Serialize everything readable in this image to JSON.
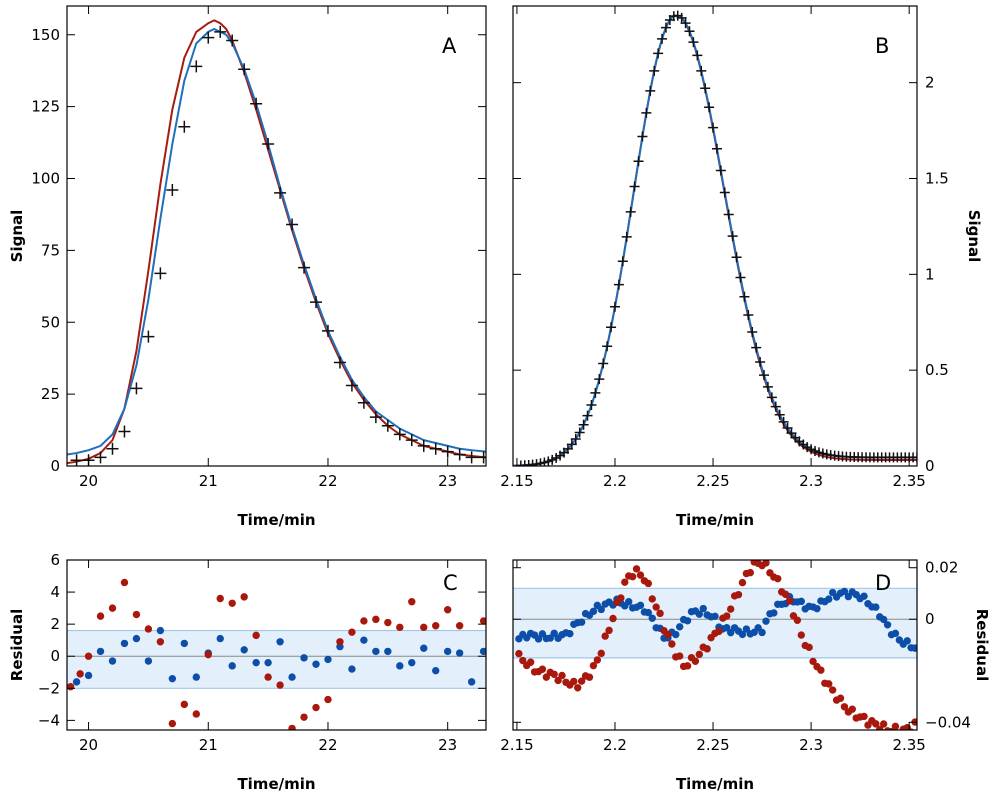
{
  "colors": {
    "data": "#111111",
    "fit_blue": "#1f6fbd",
    "fit_red": "#a61c10",
    "resid_blue": "#0d4fa8",
    "resid_red": "#a8180c",
    "band_fill": "#e3f0fb",
    "band_edge": "#9fc7ea",
    "zero_line": "#8a8a8a"
  },
  "chart_data": [
    {
      "panel": "A",
      "type": "line",
      "xlabel": "Time/min",
      "ylabel": "Signal",
      "xlim": [
        19.82,
        23.32
      ],
      "ylim": [
        0,
        160
      ],
      "xticks": [
        20,
        21,
        22,
        23
      ],
      "xtick_labels": [
        "20",
        "21",
        "22",
        "23"
      ],
      "yticks": [
        0,
        25,
        50,
        75,
        100,
        125,
        150
      ],
      "ytick_labels": [
        "0",
        "25",
        "50",
        "75",
        "100",
        "125",
        "150"
      ],
      "y_axis_side": "left",
      "data_points": {
        "x": [
          19.9,
          20.0,
          20.1,
          20.2,
          20.3,
          20.4,
          20.5,
          20.6,
          20.7,
          20.8,
          20.9,
          21.0,
          21.1,
          21.2,
          21.3,
          21.4,
          21.5,
          21.6,
          21.7,
          21.8,
          21.9,
          22.0,
          22.1,
          22.2,
          22.3,
          22.4,
          22.5,
          22.6,
          22.7,
          22.8,
          22.9,
          23.0,
          23.1,
          23.2,
          23.3
        ],
        "y": [
          2,
          2,
          3,
          6,
          12,
          27,
          45,
          67,
          96,
          118,
          139,
          149,
          151,
          148,
          138,
          126,
          112,
          95,
          84,
          69,
          57,
          47,
          36,
          28,
          22,
          17,
          14,
          11,
          9,
          7,
          6,
          5,
          4,
          3,
          3
        ]
      },
      "series": [
        {
          "x": [
            19.82,
            19.9,
            20.0,
            20.1,
            20.2,
            20.3,
            20.4,
            20.5,
            20.6,
            20.7,
            20.8,
            20.9,
            21.0,
            21.05,
            21.1,
            21.15,
            21.2,
            21.3,
            21.4,
            21.5,
            21.6,
            21.7,
            21.8,
            21.9,
            22.0,
            22.1,
            22.2,
            22.3,
            22.4,
            22.5,
            22.6,
            22.7,
            22.8,
            22.9,
            23.0,
            23.1,
            23.2,
            23.32
          ],
          "y": [
            1,
            1.5,
            2.5,
            4.5,
            9,
            20,
            40,
            68,
            98,
            124,
            142,
            151,
            154,
            155,
            154,
            152,
            148,
            137,
            124,
            110,
            96,
            82,
            69,
            57,
            46,
            37,
            29,
            23,
            18,
            14,
            11,
            9,
            7,
            6,
            5,
            4,
            3.5,
            3
          ]
        },
        {
          "x": [
            19.82,
            19.9,
            20.0,
            20.1,
            20.2,
            20.3,
            20.4,
            20.5,
            20.6,
            20.7,
            20.8,
            20.9,
            21.0,
            21.05,
            21.1,
            21.15,
            21.2,
            21.3,
            21.4,
            21.5,
            21.6,
            21.7,
            21.8,
            21.9,
            22.0,
            22.1,
            22.2,
            22.3,
            22.4,
            22.5,
            22.6,
            22.7,
            22.8,
            22.9,
            23.0,
            23.1,
            23.2,
            23.32
          ],
          "y": [
            4,
            4.5,
            5.5,
            7,
            11,
            20,
            35,
            58,
            86,
            112,
            134,
            147,
            151,
            152,
            151,
            150,
            147,
            138,
            126,
            112,
            97,
            83,
            70,
            58,
            47,
            38,
            30,
            24,
            19,
            16,
            13,
            11,
            9,
            8,
            7,
            6,
            5.5,
            5
          ]
        }
      ]
    },
    {
      "panel": "B",
      "type": "line",
      "xlabel": "Time/min",
      "ylabel": "Signal",
      "xlim": [
        2.148,
        2.354
      ],
      "ylim": [
        0,
        2.4
      ],
      "xticks": [
        2.15,
        2.2,
        2.25,
        2.3,
        2.35
      ],
      "xtick_labels": [
        "2.15",
        "2.2",
        "2.25",
        "2.3",
        "2.35"
      ],
      "yticks": [
        0,
        0.5,
        1,
        1.5,
        2
      ],
      "ytick_labels": [
        "0",
        "0.5",
        "1",
        "1.5",
        "2"
      ],
      "y_axis_side": "right",
      "peak": {
        "amplitude": 2.35,
        "center": 2.231,
        "sigma_left": 0.0215,
        "sigma_right": 0.0245,
        "tail": 0.022,
        "baseline": 0.025
      },
      "data_points": {
        "x_start": 2.152,
        "x_end": 2.353,
        "step": 0.002
      },
      "series": [
        {
          "x_start": 2.148,
          "x_end": 2.354,
          "tail_scale": 1.0
        },
        {
          "x_start": 2.148,
          "x_end": 2.354,
          "tail_scale": 0.7
        }
      ]
    },
    {
      "panel": "C",
      "type": "scatter",
      "xlabel": "Time/min",
      "ylabel": "Residual",
      "xlim": [
        19.82,
        23.32
      ],
      "ylim": [
        -4.6,
        6.0
      ],
      "xticks": [
        20,
        21,
        22,
        23
      ],
      "xtick_labels": [
        "20",
        "21",
        "22",
        "23"
      ],
      "yticks": [
        -4,
        -2,
        0,
        2,
        4,
        6
      ],
      "ytick_labels": [
        "−4",
        "−2",
        "0",
        "2",
        "4",
        "6"
      ],
      "y_axis_side": "left",
      "band": [
        -2.0,
        1.6
      ],
      "series": [
        {
          "x": [
            19.9,
            20.0,
            20.1,
            20.2,
            20.3,
            20.4,
            20.5,
            20.6,
            20.7,
            20.8,
            20.9,
            21.0,
            21.1,
            21.2,
            21.3,
            21.4,
            21.5,
            21.6,
            21.7,
            21.8,
            21.9,
            22.0,
            22.1,
            22.2,
            22.3,
            22.4,
            22.5,
            22.6,
            22.7,
            22.8,
            22.9,
            23.0,
            23.1,
            23.2,
            23.3
          ],
          "y": [
            -1.6,
            -1.2,
            0.3,
            -0.3,
            0.8,
            1.1,
            -0.3,
            1.6,
            -1.4,
            0.8,
            -1.3,
            0.2,
            1.1,
            -0.6,
            0.4,
            -0.4,
            -0.4,
            0.9,
            -1.3,
            -0.1,
            -0.5,
            -0.2,
            0.6,
            -0.8,
            1.0,
            0.3,
            0.3,
            -0.6,
            -0.4,
            0.5,
            -0.9,
            0.3,
            0.2,
            -1.6,
            0.3
          ]
        },
        {
          "x": [
            19.85,
            19.93,
            20.0,
            20.1,
            20.2,
            20.3,
            20.4,
            20.5,
            20.6,
            20.7,
            20.8,
            20.9,
            21.0,
            21.1,
            21.2,
            21.3,
            21.4,
            21.5,
            21.6,
            21.7,
            21.8,
            21.9,
            22.0,
            22.1,
            22.2,
            22.3,
            22.4,
            22.5,
            22.6,
            22.7,
            22.8,
            22.9,
            23.0,
            23.1,
            23.3
          ],
          "y": [
            -1.9,
            -1.1,
            0.0,
            2.5,
            3.0,
            4.6,
            2.6,
            1.7,
            0.9,
            -4.2,
            -3.0,
            -3.6,
            0.1,
            3.6,
            3.3,
            3.7,
            1.3,
            -1.3,
            -1.8,
            -4.5,
            -3.8,
            -3.2,
            -2.7,
            0.9,
            1.5,
            2.2,
            2.3,
            2.1,
            1.8,
            3.4,
            1.8,
            1.9,
            2.9,
            1.9,
            2.2
          ]
        }
      ]
    },
    {
      "panel": "D",
      "type": "scatter",
      "xlabel": "Time/min",
      "ylabel": "Residual",
      "xlim": [
        2.148,
        2.354
      ],
      "ylim": [
        -0.043,
        0.023
      ],
      "xticks": [
        2.15,
        2.2,
        2.25,
        2.3,
        2.35
      ],
      "xtick_labels": [
        "2.15",
        "2.2",
        "2.25",
        "2.3",
        "2.35"
      ],
      "yticks": [
        -0.04,
        0,
        0.02
      ],
      "ytick_labels": [
        "−0.04",
        "0",
        "0.02"
      ],
      "y_axis_side": "right",
      "band": [
        -0.015,
        0.012
      ],
      "series": [
        {
          "keypoints_x": [
            2.15,
            2.155,
            2.165,
            2.175,
            2.18,
            2.19,
            2.2,
            2.205,
            2.21,
            2.215,
            2.22,
            2.225,
            2.23,
            2.235,
            2.24,
            2.245,
            2.25,
            2.255,
            2.26,
            2.265,
            2.27,
            2.275,
            2.28,
            2.285,
            2.29,
            2.295,
            2.3,
            2.305,
            2.31,
            2.315,
            2.32,
            2.325,
            2.33,
            2.335,
            2.34,
            2.345,
            2.35,
            2.353
          ],
          "keypoints_y": [
            -0.008,
            -0.006,
            -0.007,
            -0.006,
            -0.002,
            0.004,
            0.007,
            0.006,
            0.005,
            0.004,
            -0.001,
            -0.007,
            -0.006,
            -0.001,
            0.003,
            0.003,
            0.001,
            -0.004,
            -0.004,
            -0.005,
            -0.005,
            -0.004,
            0.003,
            0.006,
            0.008,
            0.006,
            0.004,
            0.006,
            0.009,
            0.01,
            0.01,
            0.009,
            0.006,
            0.002,
            -0.004,
            -0.008,
            -0.01,
            -0.011
          ]
        },
        {
          "keypoints_x": [
            2.15,
            2.155,
            2.16,
            2.17,
            2.175,
            2.18,
            2.185,
            2.19,
            2.195,
            2.2,
            2.205,
            2.21,
            2.215,
            2.22,
            2.225,
            2.23,
            2.235,
            2.24,
            2.245,
            2.25,
            2.255,
            2.26,
            2.265,
            2.27,
            2.275,
            2.28,
            2.285,
            2.29,
            2.295,
            2.3,
            2.305,
            2.31,
            2.315,
            2.32,
            2.33,
            2.34,
            2.35,
            2.353
          ],
          "keypoints_y": [
            -0.014,
            -0.017,
            -0.02,
            -0.022,
            -0.024,
            -0.026,
            -0.023,
            -0.018,
            -0.008,
            0.003,
            0.014,
            0.019,
            0.016,
            0.007,
            -0.003,
            -0.012,
            -0.018,
            -0.016,
            -0.012,
            -0.007,
            -0.001,
            0.006,
            0.014,
            0.021,
            0.022,
            0.018,
            0.012,
            0.005,
            -0.006,
            -0.014,
            -0.021,
            -0.027,
            -0.032,
            -0.036,
            -0.04,
            -0.043,
            -0.043,
            -0.041
          ]
        }
      ]
    }
  ]
}
